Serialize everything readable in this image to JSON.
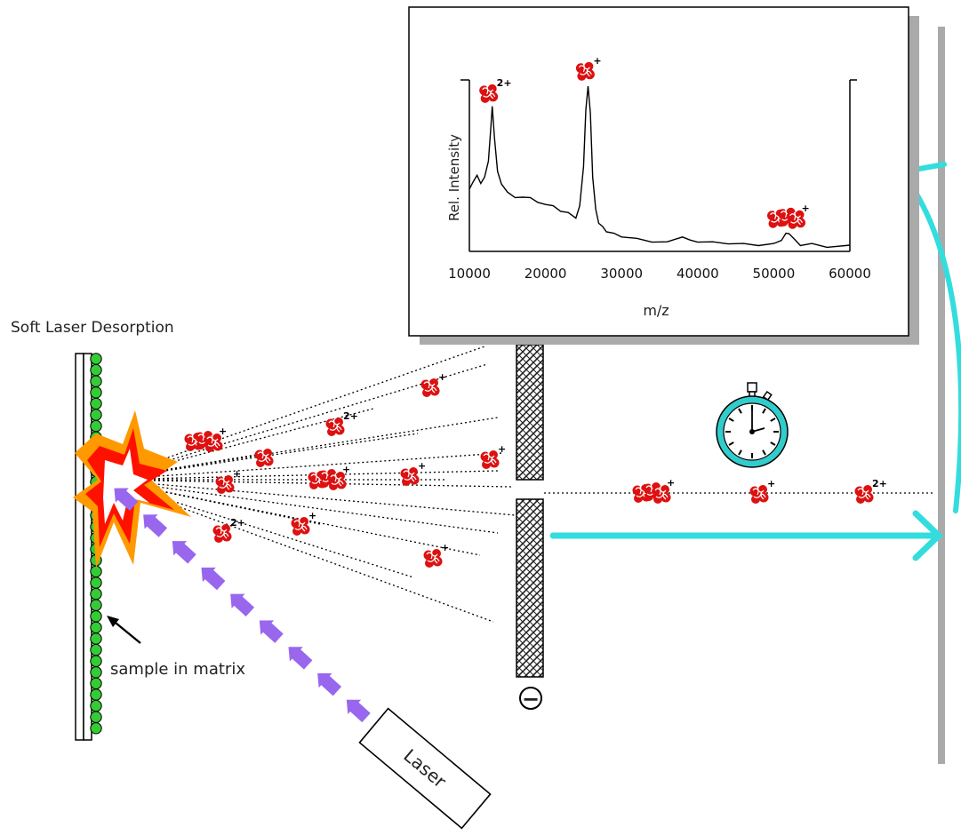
{
  "title": "Soft Laser Desorption",
  "sample_label": "sample in matrix",
  "laser_label": "Laser",
  "detector_sign": "−",
  "colors": {
    "ion": "#dd1111",
    "laser_beam": "#9966ee",
    "flight_arrow": "#33dddd",
    "matrix_bead": "#33cc33",
    "burst_outer": "#ff9900",
    "burst_inner": "#ff1100",
    "stopwatch": "#33cccc"
  },
  "icons": [
    "protein-ion-icon",
    "stopwatch-icon",
    "laser-burst-icon",
    "detector-grid-icon"
  ],
  "spectrum": {
    "x_axis_label": "m/z",
    "y_axis_label": "Rel. Intensity",
    "x_ticks": [
      "10000",
      "20000",
      "30000",
      "40000",
      "50000",
      "60000"
    ],
    "peak_labels": [
      "2+",
      "+",
      "+"
    ]
  },
  "chart_data": {
    "type": "line",
    "xlabel": "m/z",
    "ylabel": "Rel. Intensity",
    "xlim": [
      10000,
      60000
    ],
    "ylim": [
      0,
      100
    ],
    "x": [
      10000,
      10500,
      11000,
      11500,
      12000,
      12500,
      12800,
      13000,
      13300,
      13700,
      14200,
      15000,
      16000,
      17000,
      18000,
      19000,
      20000,
      21000,
      22000,
      23000,
      24000,
      24500,
      25000,
      25300,
      25600,
      25900,
      26200,
      26600,
      27000,
      27500,
      28000,
      29000,
      30000,
      32000,
      34000,
      36000,
      38000,
      39000,
      40000,
      42000,
      44000,
      46000,
      48000,
      50000,
      51000,
      51600,
      52000,
      52600,
      53500,
      55000,
      57000,
      60000
    ],
    "y": [
      37,
      40,
      45,
      39,
      44,
      52,
      72,
      84,
      67,
      46,
      40,
      34,
      32,
      31,
      32,
      28,
      28,
      26,
      24,
      22,
      20,
      26,
      50,
      82,
      97,
      80,
      44,
      24,
      17,
      14,
      12,
      10,
      9,
      7,
      6,
      5,
      9,
      6,
      6,
      5,
      5,
      4,
      4,
      4,
      7,
      10,
      11,
      7,
      4,
      4,
      3,
      3
    ],
    "annotations": [
      {
        "x": 13000,
        "label": "2+"
      },
      {
        "x": 25700,
        "label": "+"
      },
      {
        "x": 52000,
        "label": "+"
      }
    ],
    "grid": false
  }
}
